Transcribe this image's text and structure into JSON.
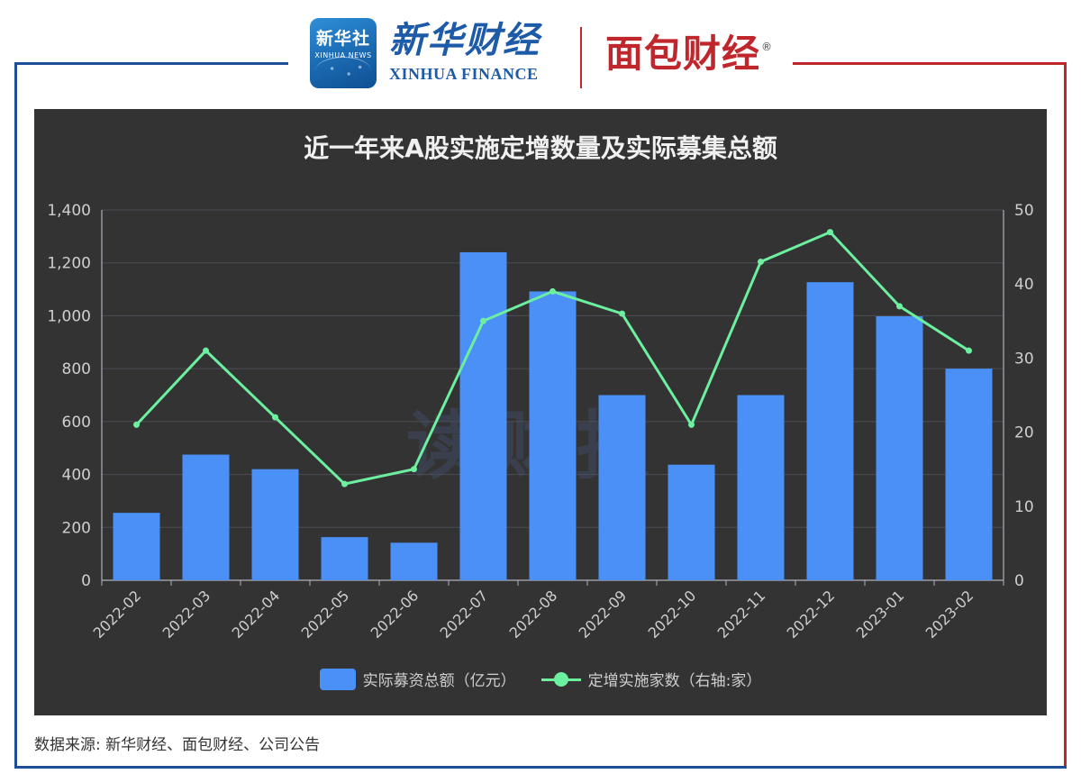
{
  "header": {
    "xinhua_icon_cn": "新华社",
    "xinhua_icon_en": "XINHUA NEWS",
    "xinhua_finance_cn": "新华财经",
    "xinhua_finance_en": "XINHUA FINANCE",
    "mianbao_cn": "面包财经",
    "mianbao_reg": "®"
  },
  "watermark": "读财报",
  "source": "数据来源: 新华财经、面包财经、公司公告",
  "colors": {
    "bar": "#4a90f7",
    "line": "#6cf0a0",
    "panel": "#333333",
    "frame_blue": "#1d4e96",
    "frame_red": "#c0272d"
  },
  "chart_data": {
    "type": "bar",
    "title": "近一年来A股实施定增数量及实际募集总额",
    "categories": [
      "2022-02",
      "2022-03",
      "2022-04",
      "2022-05",
      "2022-06",
      "2022-07",
      "2022-08",
      "2022-09",
      "2022-10",
      "2022-11",
      "2022-12",
      "2023-01",
      "2023-02"
    ],
    "series": [
      {
        "name": "实际募资总额（亿元）",
        "type": "bar",
        "axis": "left",
        "values": [
          255,
          475,
          420,
          163,
          142,
          1240,
          1092,
          700,
          437,
          700,
          1127,
          998,
          800
        ]
      },
      {
        "name": "定增实施家数（右轴:家）",
        "type": "line",
        "axis": "right",
        "values": [
          21,
          31,
          22,
          13,
          15,
          35,
          39,
          36,
          21,
          43,
          47,
          37,
          31
        ]
      }
    ],
    "y_left": {
      "min": 0,
      "max": 1400,
      "ticks": [
        0,
        200,
        400,
        600,
        800,
        1000,
        1200,
        1400
      ],
      "tick_labels": [
        "0",
        "200",
        "400",
        "600",
        "800",
        "1,000",
        "1,200",
        "1,400"
      ]
    },
    "y_right": {
      "min": 0,
      "max": 50,
      "ticks": [
        0,
        10,
        20,
        30,
        40,
        50
      ],
      "tick_labels": [
        "0",
        "10",
        "20",
        "30",
        "40",
        "50"
      ]
    },
    "grid": true,
    "legend_position": "bottom-center"
  }
}
